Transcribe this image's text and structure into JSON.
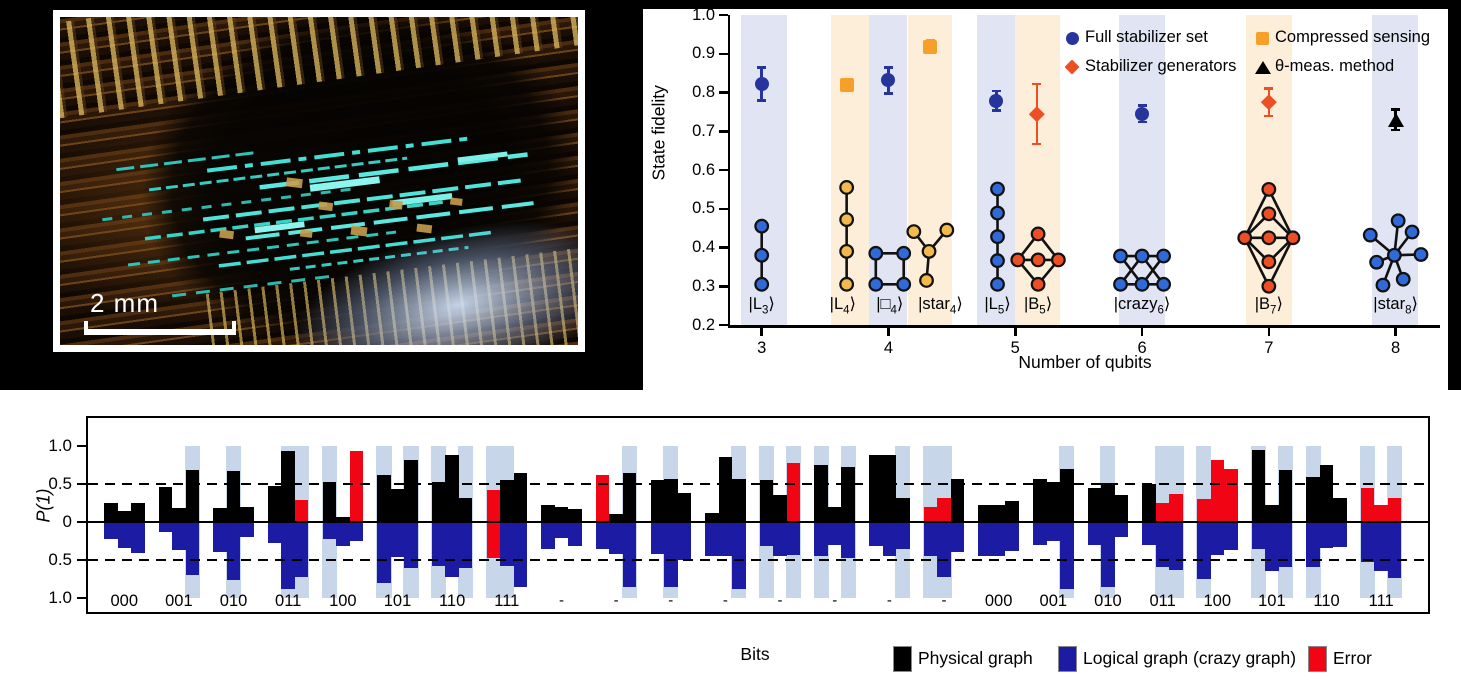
{
  "photo": {
    "scale_bar_label": "2 mm"
  },
  "chart_data": [
    {
      "id": "state_fidelity",
      "type": "scatter",
      "title": "",
      "xlabel": "Number of qubits",
      "ylabel": "State fidelity",
      "xlim": [
        2.75,
        8.35
      ],
      "ylim": [
        0.2,
        1.0
      ],
      "xticks": [
        3,
        4,
        5,
        6,
        7,
        8
      ],
      "yticks": [
        0.2,
        0.3,
        0.4,
        0.5,
        0.6,
        0.7,
        0.8,
        0.9,
        1.0
      ],
      "band_colors": {
        "blue": "#e0e4f3",
        "orange": "#fdeeda"
      },
      "bands": [
        [
          2.84,
          3.2,
          "blue"
        ],
        [
          3.55,
          3.85,
          "orange"
        ],
        [
          3.85,
          4.15,
          "blue"
        ],
        [
          4.15,
          4.5,
          "orange"
        ],
        [
          4.7,
          5.0,
          "blue"
        ],
        [
          5.0,
          5.35,
          "orange"
        ],
        [
          5.82,
          6.18,
          "blue"
        ],
        [
          6.82,
          7.18,
          "orange"
        ],
        [
          7.81,
          8.18,
          "blue"
        ]
      ],
      "legend": [
        {
          "label": "Full stabilizer set",
          "marker": "circle",
          "color": "#27349c",
          "col": 0,
          "row": 0
        },
        {
          "label": "Stabilizer generators",
          "marker": "diamond",
          "color": "#ee4e23",
          "col": 0,
          "row": 1
        },
        {
          "label": "Compressed sensing",
          "marker": "square",
          "color": "#f6a02b",
          "col": 1,
          "row": 0
        },
        {
          "label": "θ-meas. method",
          "marker": "triangle",
          "color": "#000000",
          "col": 1,
          "row": 1
        }
      ],
      "points": [
        {
          "x": 3.0,
          "y": 0.822,
          "err": 0.043,
          "marker": "circle",
          "color": "#27349c",
          "series": "Full stabilizer set"
        },
        {
          "x": 3.67,
          "y": 0.82,
          "err": 0.013,
          "marker": "square",
          "color": "#f6a02b",
          "series": "Compressed sensing"
        },
        {
          "x": 4.0,
          "y": 0.831,
          "err": 0.034,
          "marker": "circle",
          "color": "#27349c",
          "series": "Full stabilizer set"
        },
        {
          "x": 4.33,
          "y": 0.918,
          "err": 0.017,
          "marker": "square",
          "color": "#f6a02b",
          "series": "Compressed sensing"
        },
        {
          "x": 4.85,
          "y": 0.779,
          "err": 0.026,
          "marker": "circle",
          "color": "#27349c",
          "series": "Full stabilizer set"
        },
        {
          "x": 5.17,
          "y": 0.744,
          "err": 0.078,
          "marker": "diamond",
          "color": "#ee4e23",
          "series": "Stabilizer generators"
        },
        {
          "x": 6.0,
          "y": 0.745,
          "err": 0.022,
          "marker": "circle",
          "color": "#27349c",
          "series": "Full stabilizer set"
        },
        {
          "x": 7.0,
          "y": 0.775,
          "err": 0.036,
          "marker": "diamond",
          "color": "#ee4e23",
          "series": "Stabilizer generators"
        },
        {
          "x": 8.0,
          "y": 0.73,
          "err": 0.027,
          "marker": "triangle",
          "color": "#000000",
          "series": "θ-meas. method"
        }
      ],
      "graph_node_colors": {
        "blue": "#2f6ad8",
        "yellow": "#f2b94d",
        "red": "#ee4e23"
      },
      "states": [
        {
          "pre": "|L",
          "sub": "3",
          "post": "⟩",
          "label_x": 3.0,
          "node_color": "blue",
          "nodes": [
            [
              3.0,
              0.455
            ],
            [
              3.0,
              0.38
            ],
            [
              3.0,
              0.305
            ]
          ],
          "edges": [
            [
              0,
              1
            ],
            [
              1,
              2
            ]
          ]
        },
        {
          "pre": "|L",
          "sub": "4",
          "post": "⟩",
          "label_x": 3.64,
          "node_color": "yellow",
          "nodes": [
            [
              3.67,
              0.555
            ],
            [
              3.67,
              0.472
            ],
            [
              3.67,
              0.39
            ],
            [
              3.67,
              0.305
            ]
          ],
          "edges": [
            [
              0,
              1
            ],
            [
              1,
              2
            ],
            [
              2,
              3
            ]
          ]
        },
        {
          "pre": "|□",
          "sub": "4",
          "post": "⟩",
          "label_x": 4.01,
          "node_color": "blue",
          "nodes": [
            [
              3.9,
              0.385
            ],
            [
              4.12,
              0.385
            ],
            [
              4.12,
              0.305
            ],
            [
              3.9,
              0.305
            ]
          ],
          "edges": [
            [
              0,
              1
            ],
            [
              1,
              2
            ],
            [
              2,
              3
            ],
            [
              3,
              0
            ]
          ]
        },
        {
          "pre": "|star",
          "sub": "4",
          "post": "⟩",
          "label_x": 4.41,
          "node_color": "yellow",
          "nodes": [
            [
              4.32,
              0.39
            ],
            [
              4.2,
              0.441
            ],
            [
              4.46,
              0.445
            ],
            [
              4.3,
              0.315
            ]
          ],
          "edges": [
            [
              0,
              1
            ],
            [
              0,
              2
            ],
            [
              0,
              3
            ]
          ]
        },
        {
          "pre": "|L",
          "sub": "5",
          "post": "⟩",
          "label_x": 4.86,
          "node_color": "blue",
          "nodes": [
            [
              4.86,
              0.551
            ],
            [
              4.86,
              0.489
            ],
            [
              4.86,
              0.428
            ],
            [
              4.86,
              0.366
            ],
            [
              4.86,
              0.305
            ]
          ],
          "edges": [
            [
              0,
              1
            ],
            [
              1,
              2
            ],
            [
              2,
              3
            ],
            [
              3,
              4
            ]
          ]
        },
        {
          "pre": "|B",
          "sub": "5",
          "post": "⟩",
          "label_x": 5.18,
          "node_color": "red",
          "nodes": [
            [
              5.02,
              0.368
            ],
            [
              5.18,
              0.435
            ],
            [
              5.34,
              0.368
            ],
            [
              5.18,
              0.305
            ],
            [
              5.18,
              0.368
            ]
          ],
          "edges": [
            [
              0,
              1
            ],
            [
              1,
              2
            ],
            [
              2,
              3
            ],
            [
              3,
              0
            ],
            [
              0,
              4
            ],
            [
              4,
              2
            ]
          ]
        },
        {
          "pre": "|crazy",
          "sub": "6",
          "post": "⟩",
          "label_x": 6.0,
          "node_color": "blue",
          "nodes": [
            [
              5.83,
              0.378
            ],
            [
              6.0,
              0.378
            ],
            [
              6.17,
              0.378
            ],
            [
              5.83,
              0.305
            ],
            [
              6.0,
              0.305
            ],
            [
              6.17,
              0.305
            ]
          ],
          "edges": [
            [
              0,
              1
            ],
            [
              1,
              2
            ],
            [
              3,
              4
            ],
            [
              4,
              5
            ],
            [
              0,
              4
            ],
            [
              3,
              1
            ],
            [
              1,
              5
            ],
            [
              4,
              2
            ]
          ]
        },
        {
          "pre": "|B",
          "sub": "7",
          "post": "⟩",
          "label_x": 7.0,
          "node_color": "red",
          "nodes": [
            [
              7.0,
              0.55
            ],
            [
              7.0,
              0.487
            ],
            [
              7.0,
              0.425
            ],
            [
              7.0,
              0.363
            ],
            [
              7.0,
              0.3
            ],
            [
              6.81,
              0.425
            ],
            [
              7.19,
              0.425
            ]
          ],
          "edges": [
            [
              5,
              0
            ],
            [
              0,
              6
            ],
            [
              5,
              4
            ],
            [
              4,
              6
            ],
            [
              5,
              1
            ],
            [
              1,
              6
            ],
            [
              5,
              3
            ],
            [
              3,
              6
            ],
            [
              5,
              2
            ],
            [
              2,
              6
            ]
          ]
        },
        {
          "pre": "|star",
          "sub": "8",
          "post": "⟩",
          "label_x": 8.0,
          "node_color": "blue",
          "nodes": [
            [
              7.99,
              0.38
            ],
            [
              7.8,
              0.432
            ],
            [
              7.85,
              0.362
            ],
            [
              7.9,
              0.303
            ],
            [
              8.02,
              0.469
            ],
            [
              8.13,
              0.44
            ],
            [
              8.2,
              0.382
            ],
            [
              8.06,
              0.318
            ]
          ],
          "edges": [
            [
              0,
              1
            ],
            [
              0,
              2
            ],
            [
              0,
              3
            ],
            [
              0,
              4
            ],
            [
              0,
              5
            ],
            [
              0,
              6
            ],
            [
              0,
              7
            ]
          ]
        }
      ]
    },
    {
      "id": "bits_probabilities",
      "type": "bar",
      "xlabel": "Bits",
      "ylabel": "P(1)",
      "yticks": [
        "1.0",
        "0.5",
        "0",
        "0.5",
        "1.0"
      ],
      "ylim_top": [
        0,
        1.0
      ],
      "ylim_bottom": [
        0,
        1.0
      ],
      "dashed_guides": [
        0.5,
        -0.5
      ],
      "colors": {
        "physical": "#000000",
        "logical": "#1b1ba3",
        "error": "#f10414",
        "band": "#c8d6e9"
      },
      "legend": [
        {
          "label": "Physical graph",
          "color_key": "physical"
        },
        {
          "label": "Logical graph (crazy graph)",
          "color_key": "logical"
        },
        {
          "label": "Error",
          "color_key": "error"
        }
      ],
      "groups": [
        {
          "label": "000",
          "top": [
            0.25,
            0.14,
            0.25
          ],
          "bot": [
            0.22,
            0.34,
            0.41
          ],
          "red_top": [],
          "red_bot": [],
          "band": []
        },
        {
          "label": "001",
          "top": [
            0.46,
            0.19,
            0.68
          ],
          "bot": [
            0.13,
            0.37,
            0.7
          ],
          "band": [
            2
          ]
        },
        {
          "label": "010",
          "top": [
            0.19,
            0.67,
            0.2
          ],
          "bot": [
            0.39,
            0.76,
            0.2
          ],
          "band": [
            1
          ]
        },
        {
          "label": "011",
          "top": [
            0.47,
            0.94,
            0.29
          ],
          "bot": [
            0.28,
            0.88,
            0.73
          ],
          "red_top": [
            2
          ],
          "band": [
            1,
            2
          ]
        },
        {
          "label": "100",
          "top": [
            0.53,
            0.06,
            0.94
          ],
          "bot": [
            0.23,
            0.32,
            0.25
          ],
          "red_top": [
            2
          ],
          "band": [
            0
          ]
        },
        {
          "label": "101",
          "top": [
            0.62,
            0.44,
            0.81
          ],
          "bot": [
            0.8,
            0.46,
            0.61
          ],
          "band": [
            0,
            2
          ]
        },
        {
          "label": "110",
          "top": [
            0.52,
            0.88,
            0.31
          ],
          "bot": [
            0.58,
            0.72,
            0.6
          ],
          "band": [
            0,
            2
          ]
        },
        {
          "label": "111",
          "top": [
            0.42,
            0.55,
            0.65
          ],
          "bot": [
            0.48,
            0.58,
            0.85
          ],
          "red_top": [
            0
          ],
          "red_bot": [
            0
          ],
          "band": [
            0,
            1
          ]
        },
        {
          "label": "-",
          "top": [
            0.23,
            0.2,
            0.17
          ],
          "bot": [
            0.35,
            0.21,
            0.31
          ],
          "band": []
        },
        {
          "label": "-",
          "top": [
            0.62,
            0.1,
            0.64
          ],
          "bot": [
            0.35,
            0.42,
            0.86
          ],
          "red_top": [
            0
          ],
          "band": [
            2
          ]
        },
        {
          "label": "-",
          "top": [
            0.55,
            0.57,
            0.38
          ],
          "bot": [
            0.42,
            0.85,
            0.5
          ],
          "band": [
            1
          ]
        },
        {
          "label": "-",
          "top": [
            0.12,
            0.85,
            0.57
          ],
          "bot": [
            0.45,
            0.45,
            0.88
          ],
          "band": [
            2
          ]
        },
        {
          "label": "-",
          "top": [
            0.55,
            0.35,
            0.78
          ],
          "bot": [
            0.31,
            0.45,
            0.43
          ],
          "red_top": [
            2
          ],
          "band": [
            0,
            2
          ]
        },
        {
          "label": "-",
          "top": [
            0.75,
            0.2,
            0.73
          ],
          "bot": [
            0.45,
            0.3,
            0.48
          ],
          "band": [
            0,
            2
          ]
        },
        {
          "label": "-",
          "top": [
            0.88,
            0.88,
            0.32
          ],
          "bot": [
            0.32,
            0.45,
            0.35
          ],
          "band": [
            2
          ]
        },
        {
          "label": "-",
          "top": [
            0.2,
            0.32,
            0.56
          ],
          "bot": [
            0.45,
            0.72,
            0.4
          ],
          "red_top": [
            0,
            1
          ],
          "band": [
            0,
            1
          ]
        },
        {
          "label": "000",
          "top": [
            0.22,
            0.22,
            0.28
          ],
          "bot": [
            0.45,
            0.45,
            0.38
          ],
          "band": []
        },
        {
          "label": "001",
          "top": [
            0.57,
            0.52,
            0.7
          ],
          "bot": [
            0.3,
            0.25,
            0.88
          ],
          "band": [
            2
          ]
        },
        {
          "label": "010",
          "top": [
            0.45,
            0.51,
            0.36
          ],
          "bot": [
            0.3,
            0.85,
            0.2
          ],
          "band": [
            1
          ]
        },
        {
          "label": "011",
          "top": [
            0.5,
            0.25,
            0.37
          ],
          "bot": [
            0.3,
            0.59,
            0.63
          ],
          "red_top": [
            1,
            2
          ],
          "band": [
            1,
            2
          ]
        },
        {
          "label": "100",
          "top": [
            0.3,
            0.81,
            0.7
          ],
          "bot": [
            0.75,
            0.43,
            0.37
          ],
          "red_top": [
            0,
            1,
            2
          ],
          "band": [
            0
          ]
        },
        {
          "label": "101",
          "top": [
            0.95,
            0.23,
            0.69
          ],
          "bot": [
            0.36,
            0.64,
            0.59
          ],
          "band": [
            0,
            2
          ]
        },
        {
          "label": "110",
          "top": [
            0.59,
            0.75,
            0.32
          ],
          "bot": [
            0.59,
            0.34,
            0.33
          ],
          "band": [
            0
          ]
        },
        {
          "label": "111",
          "top": [
            0.45,
            0.23,
            0.32
          ],
          "bot": [
            0.53,
            0.64,
            0.74
          ],
          "red_top": [
            0,
            1,
            2
          ],
          "band": [
            0,
            2
          ]
        }
      ]
    }
  ]
}
